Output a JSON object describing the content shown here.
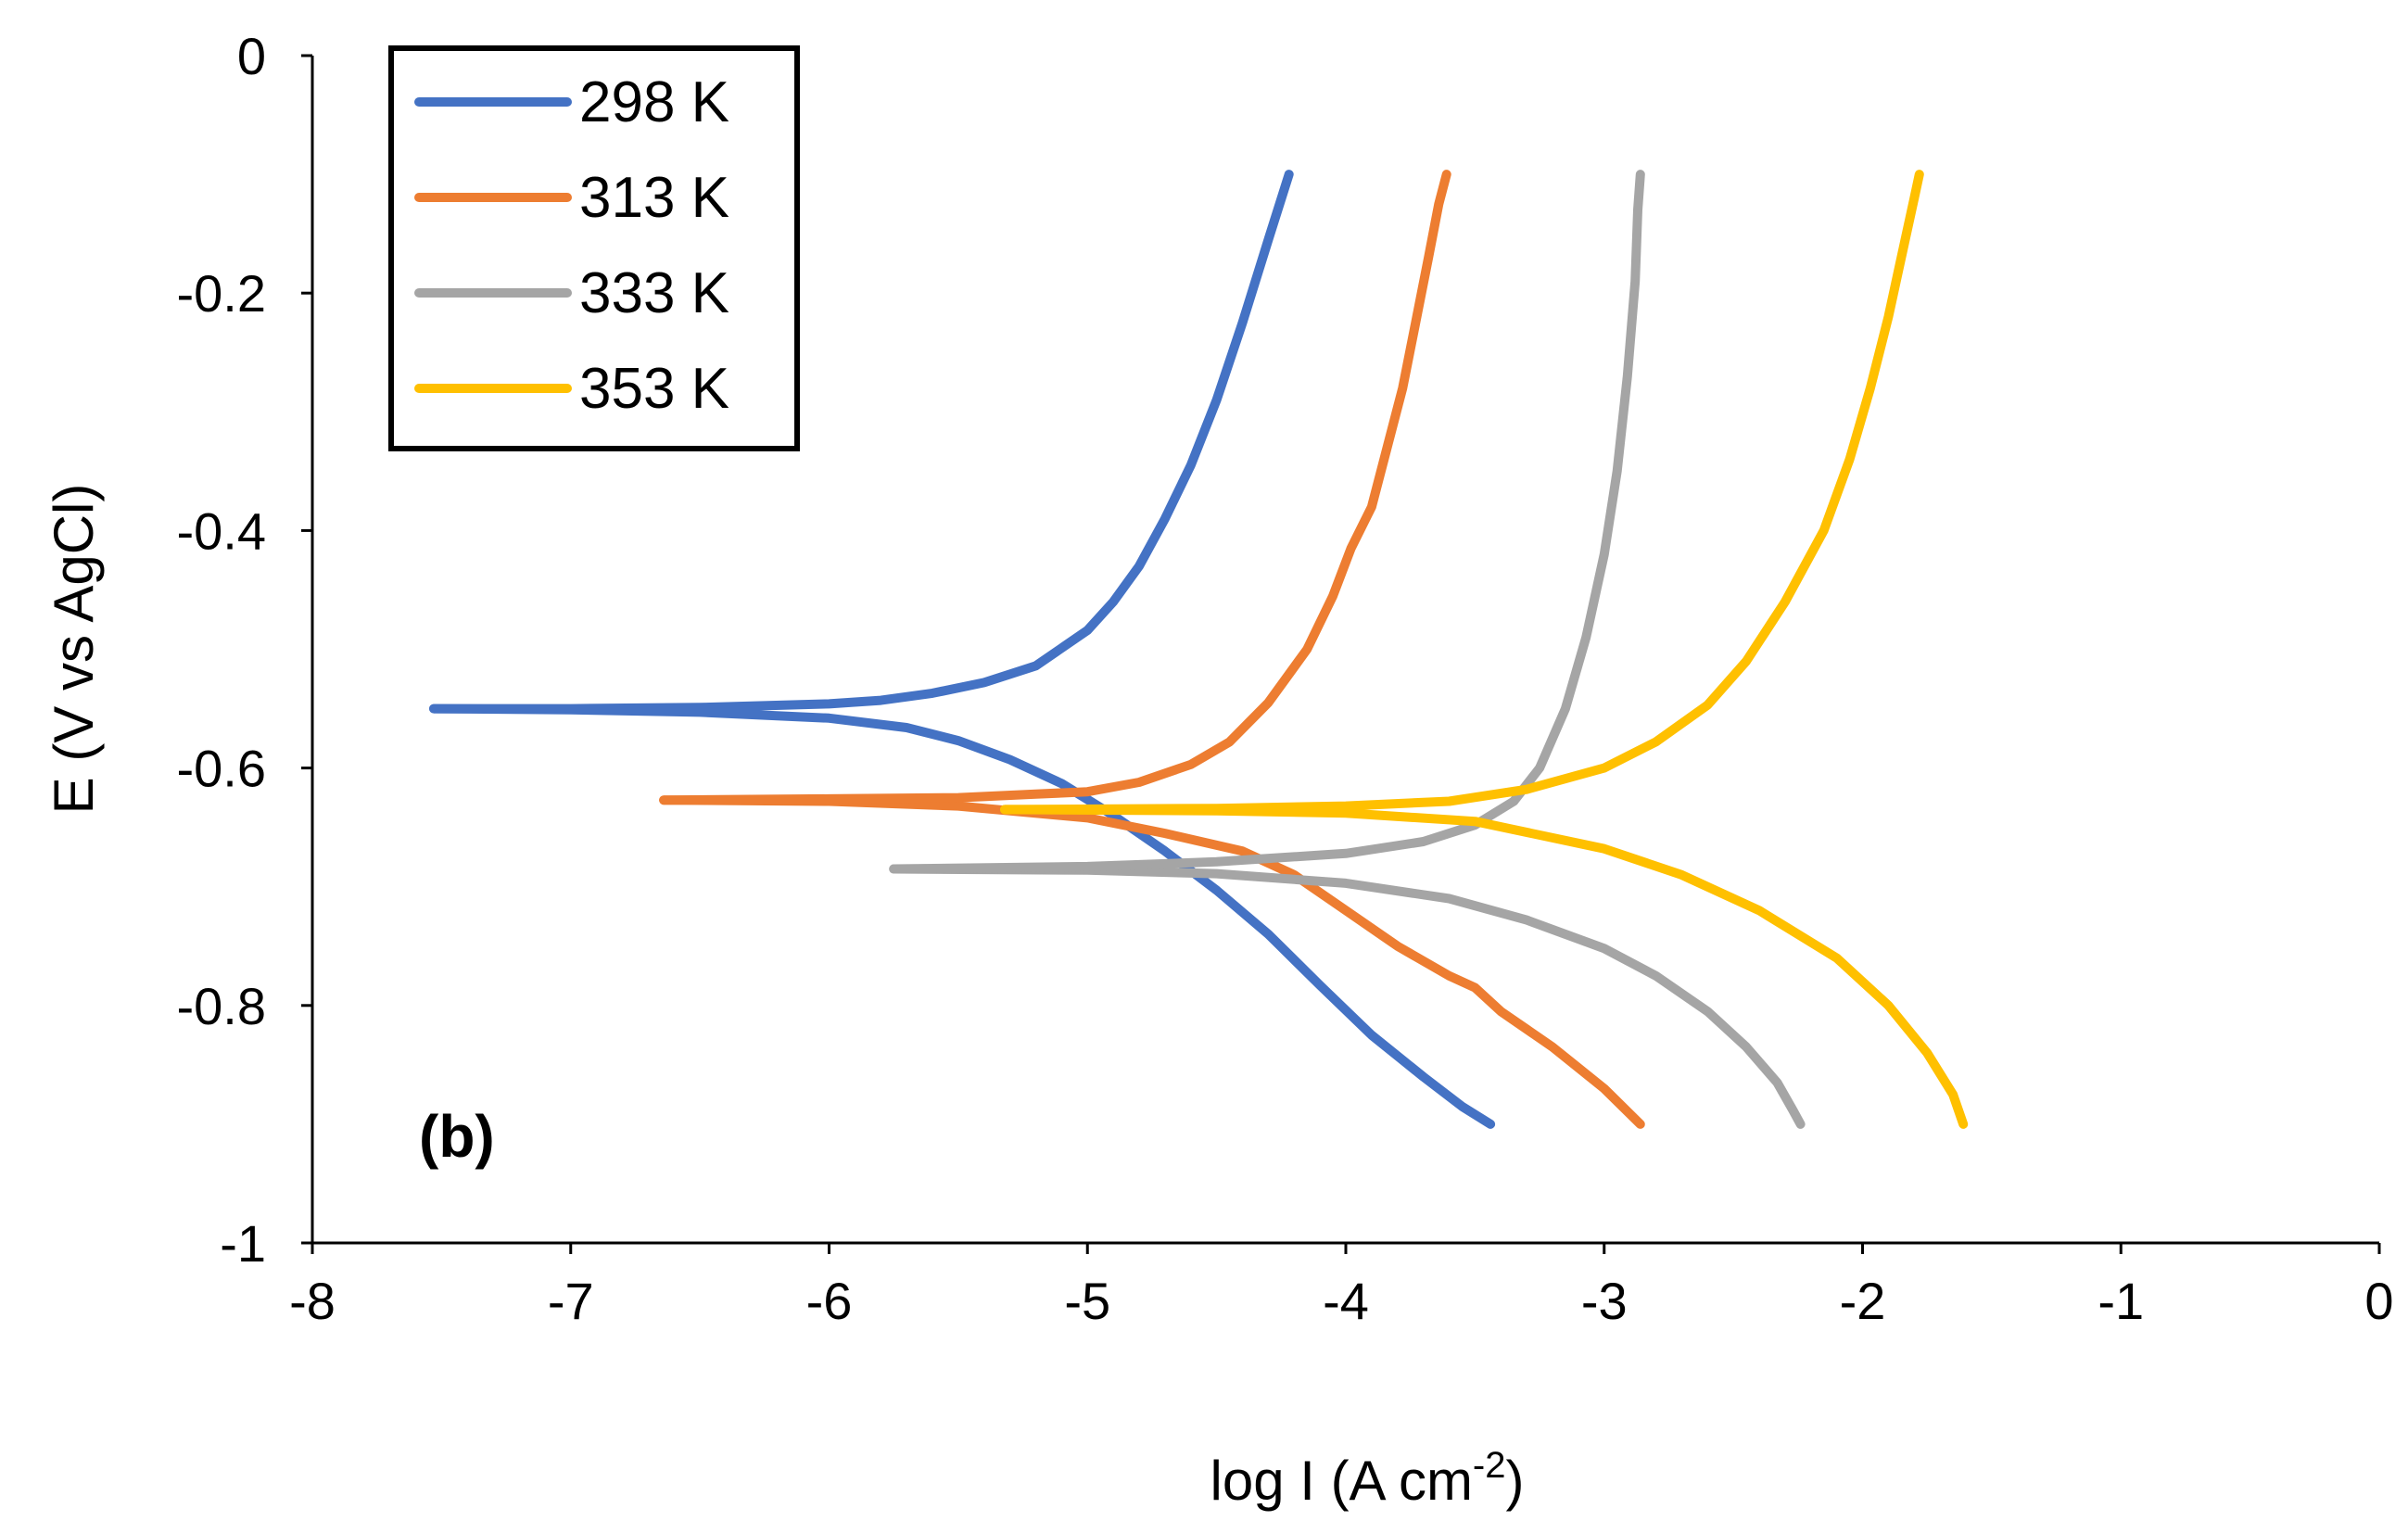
{
  "chart_data": {
    "type": "line",
    "title": "",
    "xlabel": "log I (A cm",
    "xlabel_sup": "-2",
    "xlabel_end": ")",
    "ylabel": "E (V vs AgCl)",
    "xlim": [
      -8,
      0
    ],
    "ylim": [
      -1,
      0
    ],
    "x_ticks": [
      -8,
      -7,
      -6,
      -5,
      -4,
      -3,
      -2,
      -1,
      0
    ],
    "x_tick_labels": [
      "-8",
      "-7",
      "-6",
      "-5",
      "-4",
      "-3",
      "-2",
      "-1",
      "0"
    ],
    "y_ticks": [
      0,
      -0.2,
      -0.4,
      -0.6,
      -0.8,
      -1
    ],
    "y_tick_labels": [
      "0",
      "-0.2",
      "-0.4",
      "-0.6",
      "-0.8",
      "-1"
    ],
    "grid": false,
    "legend_position": "top-left",
    "annotation": "(b)",
    "series": [
      {
        "name": "298 K",
        "color": "#4472C4",
        "anodic": [
          [
            -7.53,
            -0.55
          ],
          [
            -7.0,
            -0.55
          ],
          [
            -6.5,
            -0.549
          ],
          [
            -6.0,
            -0.546
          ],
          [
            -5.8,
            -0.543
          ],
          [
            -5.6,
            -0.537
          ],
          [
            -5.4,
            -0.528
          ],
          [
            -5.2,
            -0.514
          ],
          [
            -5.0,
            -0.484
          ],
          [
            -4.9,
            -0.46
          ],
          [
            -4.8,
            -0.43
          ],
          [
            -4.7,
            -0.39
          ],
          [
            -4.6,
            -0.345
          ],
          [
            -4.5,
            -0.29
          ],
          [
            -4.4,
            -0.225
          ],
          [
            -4.3,
            -0.155
          ],
          [
            -4.22,
            -0.1
          ]
        ],
        "cathodic": [
          [
            -7.53,
            -0.55
          ],
          [
            -7.0,
            -0.551
          ],
          [
            -6.5,
            -0.553
          ],
          [
            -6.0,
            -0.558
          ],
          [
            -5.7,
            -0.566
          ],
          [
            -5.5,
            -0.577
          ],
          [
            -5.3,
            -0.593
          ],
          [
            -5.1,
            -0.613
          ],
          [
            -4.9,
            -0.64
          ],
          [
            -4.7,
            -0.67
          ],
          [
            -4.5,
            -0.703
          ],
          [
            -4.3,
            -0.74
          ],
          [
            -4.1,
            -0.783
          ],
          [
            -3.9,
            -0.825
          ],
          [
            -3.7,
            -0.86
          ],
          [
            -3.55,
            -0.885
          ],
          [
            -3.44,
            -0.9
          ]
        ]
      },
      {
        "name": "313 K",
        "color": "#ED7D31",
        "anodic": [
          [
            -6.64,
            -0.627
          ],
          [
            -6.0,
            -0.626
          ],
          [
            -5.5,
            -0.625
          ],
          [
            -5.2,
            -0.622
          ],
          [
            -5.0,
            -0.62
          ],
          [
            -4.8,
            -0.612
          ],
          [
            -4.6,
            -0.597
          ],
          [
            -4.45,
            -0.578
          ],
          [
            -4.3,
            -0.545
          ],
          [
            -4.15,
            -0.5
          ],
          [
            -4.05,
            -0.455
          ],
          [
            -3.98,
            -0.415
          ],
          [
            -3.9,
            -0.38
          ],
          [
            -3.84,
            -0.33
          ],
          [
            -3.78,
            -0.28
          ],
          [
            -3.73,
            -0.225
          ],
          [
            -3.68,
            -0.17
          ],
          [
            -3.64,
            -0.125
          ],
          [
            -3.61,
            -0.1
          ]
        ],
        "cathodic": [
          [
            -6.64,
            -0.627
          ],
          [
            -6.0,
            -0.628
          ],
          [
            -5.5,
            -0.632
          ],
          [
            -5.0,
            -0.642
          ],
          [
            -4.7,
            -0.655
          ],
          [
            -4.4,
            -0.67
          ],
          [
            -4.2,
            -0.69
          ],
          [
            -4.0,
            -0.72
          ],
          [
            -3.8,
            -0.75
          ],
          [
            -3.6,
            -0.775
          ],
          [
            -3.5,
            -0.785
          ],
          [
            -3.4,
            -0.805
          ],
          [
            -3.2,
            -0.835
          ],
          [
            -3.0,
            -0.87
          ],
          [
            -2.86,
            -0.9
          ]
        ]
      },
      {
        "name": "333 K",
        "color": "#A5A5A5",
        "anodic": [
          [
            -5.75,
            -0.685
          ],
          [
            -5.0,
            -0.683
          ],
          [
            -4.5,
            -0.679
          ],
          [
            -4.0,
            -0.672
          ],
          [
            -3.7,
            -0.662
          ],
          [
            -3.5,
            -0.648
          ],
          [
            -3.35,
            -0.628
          ],
          [
            -3.25,
            -0.6
          ],
          [
            -3.15,
            -0.55
          ],
          [
            -3.07,
            -0.49
          ],
          [
            -3.0,
            -0.42
          ],
          [
            -2.95,
            -0.35
          ],
          [
            -2.91,
            -0.27
          ],
          [
            -2.88,
            -0.19
          ],
          [
            -2.87,
            -0.13
          ],
          [
            -2.86,
            -0.1
          ]
        ],
        "cathodic": [
          [
            -5.75,
            -0.685
          ],
          [
            -5.0,
            -0.686
          ],
          [
            -4.5,
            -0.689
          ],
          [
            -4.0,
            -0.697
          ],
          [
            -3.6,
            -0.71
          ],
          [
            -3.3,
            -0.728
          ],
          [
            -3.0,
            -0.752
          ],
          [
            -2.8,
            -0.775
          ],
          [
            -2.6,
            -0.805
          ],
          [
            -2.45,
            -0.835
          ],
          [
            -2.33,
            -0.865
          ],
          [
            -2.27,
            -0.888
          ],
          [
            -2.24,
            -0.9
          ]
        ]
      },
      {
        "name": "353 K",
        "color": "#FFC000",
        "anodic": [
          [
            -5.32,
            -0.635
          ],
          [
            -4.5,
            -0.634
          ],
          [
            -4.0,
            -0.632
          ],
          [
            -3.6,
            -0.628
          ],
          [
            -3.3,
            -0.618
          ],
          [
            -3.0,
            -0.6
          ],
          [
            -2.8,
            -0.578
          ],
          [
            -2.6,
            -0.547
          ],
          [
            -2.45,
            -0.51
          ],
          [
            -2.3,
            -0.46
          ],
          [
            -2.15,
            -0.4
          ],
          [
            -2.05,
            -0.34
          ],
          [
            -1.97,
            -0.28
          ],
          [
            -1.9,
            -0.22
          ],
          [
            -1.85,
            -0.17
          ],
          [
            -1.8,
            -0.12
          ],
          [
            -1.78,
            -0.1
          ]
        ],
        "cathodic": [
          [
            -5.32,
            -0.635
          ],
          [
            -4.5,
            -0.636
          ],
          [
            -4.0,
            -0.638
          ],
          [
            -3.5,
            -0.645
          ],
          [
            -3.0,
            -0.668
          ],
          [
            -2.7,
            -0.69
          ],
          [
            -2.4,
            -0.72
          ],
          [
            -2.1,
            -0.76
          ],
          [
            -1.9,
            -0.8
          ],
          [
            -1.75,
            -0.84
          ],
          [
            -1.65,
            -0.875
          ],
          [
            -1.61,
            -0.9
          ]
        ]
      }
    ]
  }
}
